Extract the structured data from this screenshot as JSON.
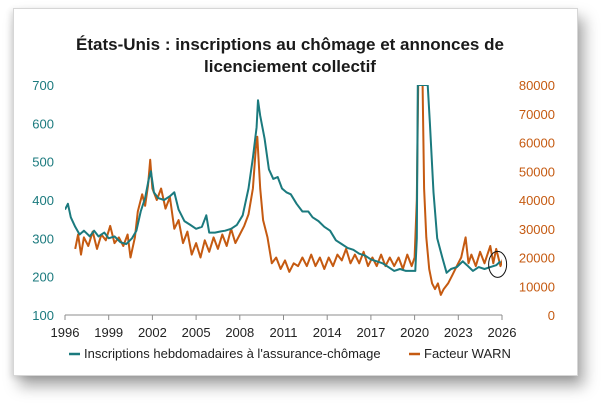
{
  "chart_data": {
    "type": "line",
    "title": "États-Unis : inscriptions au chômage et annonces de licenciement collectif",
    "title_lines": [
      "États-Unis : inscriptions au chômage et annonces de",
      "licenciement collectif"
    ],
    "xlim": [
      1996,
      2026
    ],
    "x_ticks": [
      "1996",
      "1999",
      "2002",
      "2005",
      "2008",
      "2011",
      "2014",
      "2017",
      "2020",
      "2023",
      "2026"
    ],
    "y_left": {
      "range": [
        100,
        700
      ],
      "ticks": [
        "100",
        "200",
        "300",
        "400",
        "500",
        "600",
        "700"
      ],
      "color": "#1B7A7E"
    },
    "y_right": {
      "range": [
        0,
        80000
      ],
      "ticks": [
        "0",
        "10000",
        "20000",
        "30000",
        "40000",
        "50000",
        "60000",
        "70000",
        "80000"
      ],
      "color": "#C55A11"
    },
    "grid": false,
    "legend_position": "bottom",
    "annotation": "circle",
    "series": [
      {
        "name": "Inscriptions hebdomadaires à l'assurance-chômage",
        "axis": "left",
        "color": "#1B7A7E",
        "points": [
          [
            1996.0,
            375
          ],
          [
            1996.2,
            390
          ],
          [
            1996.4,
            355
          ],
          [
            1996.7,
            330
          ],
          [
            1997.0,
            310
          ],
          [
            1997.3,
            320
          ],
          [
            1997.7,
            305
          ],
          [
            1998.0,
            320
          ],
          [
            1998.3,
            305
          ],
          [
            1998.7,
            315
          ],
          [
            1999.0,
            300
          ],
          [
            1999.4,
            305
          ],
          [
            1999.8,
            290
          ],
          [
            2000.2,
            285
          ],
          [
            2000.6,
            300
          ],
          [
            2000.9,
            320
          ],
          [
            2001.2,
            370
          ],
          [
            2001.5,
            405
          ],
          [
            2001.75,
            455
          ],
          [
            2001.9,
            475
          ],
          [
            2002.1,
            420
          ],
          [
            2002.4,
            405
          ],
          [
            2002.8,
            400
          ],
          [
            2003.2,
            410
          ],
          [
            2003.5,
            420
          ],
          [
            2003.8,
            375
          ],
          [
            2004.2,
            345
          ],
          [
            2004.6,
            335
          ],
          [
            2005.0,
            325
          ],
          [
            2005.4,
            330
          ],
          [
            2005.7,
            360
          ],
          [
            2005.9,
            315
          ],
          [
            2006.3,
            315
          ],
          [
            2006.7,
            318
          ],
          [
            2007.0,
            320
          ],
          [
            2007.4,
            325
          ],
          [
            2007.8,
            335
          ],
          [
            2008.2,
            360
          ],
          [
            2008.6,
            430
          ],
          [
            2008.9,
            510
          ],
          [
            2009.15,
            590
          ],
          [
            2009.25,
            660
          ],
          [
            2009.4,
            620
          ],
          [
            2009.7,
            560
          ],
          [
            2010.0,
            480
          ],
          [
            2010.3,
            455
          ],
          [
            2010.6,
            460
          ],
          [
            2010.9,
            430
          ],
          [
            2011.2,
            420
          ],
          [
            2011.5,
            415
          ],
          [
            2011.9,
            390
          ],
          [
            2012.3,
            370
          ],
          [
            2012.7,
            370
          ],
          [
            2013.0,
            355
          ],
          [
            2013.4,
            345
          ],
          [
            2013.8,
            330
          ],
          [
            2014.2,
            320
          ],
          [
            2014.6,
            295
          ],
          [
            2015.0,
            285
          ],
          [
            2015.4,
            275
          ],
          [
            2015.8,
            270
          ],
          [
            2016.2,
            260
          ],
          [
            2016.6,
            255
          ],
          [
            2017.0,
            245
          ],
          [
            2017.4,
            240
          ],
          [
            2017.8,
            235
          ],
          [
            2018.2,
            225
          ],
          [
            2018.6,
            215
          ],
          [
            2019.0,
            220
          ],
          [
            2019.4,
            215
          ],
          [
            2019.8,
            215
          ],
          [
            2020.05,
            215
          ],
          [
            2020.15,
            300
          ],
          [
            2020.22,
            700
          ],
          [
            2020.9,
            700
          ],
          [
            2021.05,
            600
          ],
          [
            2021.3,
            420
          ],
          [
            2021.55,
            300
          ],
          [
            2021.9,
            250
          ],
          [
            2022.2,
            210
          ],
          [
            2022.5,
            220
          ],
          [
            2022.9,
            225
          ],
          [
            2023.3,
            240
          ],
          [
            2023.6,
            230
          ],
          [
            2024.0,
            215
          ],
          [
            2024.4,
            225
          ],
          [
            2024.8,
            220
          ],
          [
            2025.2,
            225
          ],
          [
            2025.6,
            230
          ],
          [
            2025.9,
            240
          ]
        ]
      },
      {
        "name": "Facteur WARN",
        "axis": "right",
        "color": "#C55A11",
        "points": [
          [
            1996.7,
            23000
          ],
          [
            1996.9,
            28000
          ],
          [
            1997.1,
            21000
          ],
          [
            1997.3,
            27000
          ],
          [
            1997.6,
            24000
          ],
          [
            1997.9,
            29000
          ],
          [
            1998.2,
            23000
          ],
          [
            1998.5,
            28000
          ],
          [
            1998.8,
            26000
          ],
          [
            1999.1,
            31000
          ],
          [
            1999.4,
            25000
          ],
          [
            1999.7,
            27000
          ],
          [
            2000.0,
            24000
          ],
          [
            2000.3,
            28000
          ],
          [
            2000.5,
            20000
          ],
          [
            2000.8,
            27000
          ],
          [
            2001.0,
            36000
          ],
          [
            2001.3,
            42000
          ],
          [
            2001.5,
            38000
          ],
          [
            2001.7,
            45000
          ],
          [
            2001.85,
            54000
          ],
          [
            2002.0,
            44000
          ],
          [
            2002.3,
            40000
          ],
          [
            2002.6,
            44000
          ],
          [
            2002.9,
            37000
          ],
          [
            2003.2,
            41000
          ],
          [
            2003.5,
            30000
          ],
          [
            2003.8,
            33000
          ],
          [
            2004.1,
            25000
          ],
          [
            2004.4,
            29000
          ],
          [
            2004.7,
            21000
          ],
          [
            2005.0,
            25000
          ],
          [
            2005.3,
            20000
          ],
          [
            2005.6,
            26000
          ],
          [
            2005.9,
            22000
          ],
          [
            2006.2,
            27000
          ],
          [
            2006.5,
            23000
          ],
          [
            2006.8,
            28000
          ],
          [
            2007.1,
            24000
          ],
          [
            2007.4,
            30000
          ],
          [
            2007.7,
            25000
          ],
          [
            2008.0,
            28000
          ],
          [
            2008.3,
            31000
          ],
          [
            2008.6,
            35000
          ],
          [
            2008.9,
            44000
          ],
          [
            2009.1,
            58000
          ],
          [
            2009.2,
            62000
          ],
          [
            2009.4,
            44000
          ],
          [
            2009.6,
            33000
          ],
          [
            2009.9,
            27000
          ],
          [
            2010.2,
            18000
          ],
          [
            2010.5,
            20000
          ],
          [
            2010.8,
            16000
          ],
          [
            2011.1,
            19000
          ],
          [
            2011.4,
            15000
          ],
          [
            2011.7,
            18000
          ],
          [
            2012.0,
            17000
          ],
          [
            2012.3,
            20000
          ],
          [
            2012.6,
            17000
          ],
          [
            2012.9,
            21000
          ],
          [
            2013.2,
            17000
          ],
          [
            2013.5,
            20000
          ],
          [
            2013.8,
            16000
          ],
          [
            2014.1,
            20000
          ],
          [
            2014.4,
            17000
          ],
          [
            2014.7,
            21000
          ],
          [
            2015.0,
            19000
          ],
          [
            2015.3,
            23000
          ],
          [
            2015.6,
            18000
          ],
          [
            2015.9,
            21000
          ],
          [
            2016.2,
            18000
          ],
          [
            2016.5,
            22000
          ],
          [
            2016.8,
            17000
          ],
          [
            2017.1,
            20000
          ],
          [
            2017.4,
            17000
          ],
          [
            2017.7,
            21000
          ],
          [
            2018.0,
            17000
          ],
          [
            2018.3,
            20000
          ],
          [
            2018.6,
            17000
          ],
          [
            2018.9,
            20000
          ],
          [
            2019.2,
            16000
          ],
          [
            2019.5,
            21000
          ],
          [
            2019.8,
            17000
          ],
          [
            2020.0,
            20000
          ],
          [
            2020.15,
            40000
          ],
          [
            2020.25,
            80000
          ],
          [
            2020.4,
            80000
          ],
          [
            2020.55,
            80000
          ],
          [
            2020.65,
            44000
          ],
          [
            2020.8,
            27000
          ],
          [
            2021.0,
            16000
          ],
          [
            2021.2,
            11000
          ],
          [
            2021.4,
            9000
          ],
          [
            2021.6,
            11000
          ],
          [
            2021.8,
            7000
          ],
          [
            2022.0,
            9000
          ],
          [
            2022.3,
            11000
          ],
          [
            2022.6,
            14000
          ],
          [
            2022.9,
            17000
          ],
          [
            2023.2,
            20000
          ],
          [
            2023.5,
            27000
          ],
          [
            2023.7,
            18000
          ],
          [
            2023.9,
            21000
          ],
          [
            2024.2,
            17000
          ],
          [
            2024.5,
            22000
          ],
          [
            2024.8,
            18000
          ],
          [
            2025.0,
            21000
          ],
          [
            2025.2,
            24000
          ],
          [
            2025.4,
            18000
          ],
          [
            2025.6,
            23000
          ],
          [
            2025.9,
            17000
          ],
          [
            2026.1,
            20000
          ]
        ]
      }
    ]
  }
}
